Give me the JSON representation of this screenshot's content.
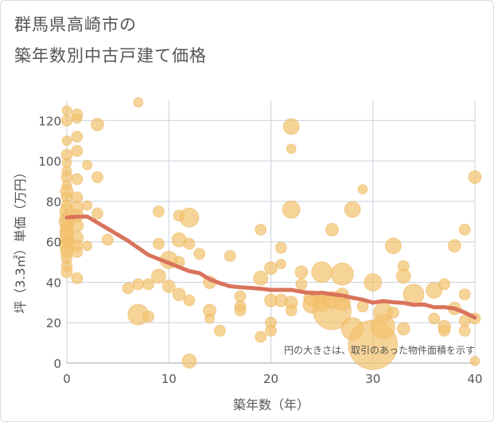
{
  "title_line1": "群馬県高崎市の",
  "title_line2": "築年数別中古戸建て価格",
  "chart_data": {
    "type": "scatter",
    "title": "群馬県高崎市の築年数別中古戸建て価格",
    "xlabel": "築年数（年）",
    "ylabel": "坪（3.3㎡）単価（万円）",
    "xlim": [
      0,
      40
    ],
    "ylim": [
      0,
      130
    ],
    "xticks": [
      0,
      10,
      20,
      30,
      40
    ],
    "yticks": [
      0,
      20,
      40,
      60,
      80,
      100,
      120
    ],
    "grid": true,
    "annotation": "円の大きさは、取引のあった物件面積を示す",
    "colors": {
      "bubble": "#f2c26f",
      "line": "#d9735b",
      "grid": "#c8d2dc"
    },
    "series": [
      {
        "type": "bubble",
        "points": [
          {
            "x": 0,
            "y": 125,
            "s": 6
          },
          {
            "x": 0,
            "y": 120,
            "s": 7
          },
          {
            "x": 0,
            "y": 110,
            "s": 6
          },
          {
            "x": 0,
            "y": 103,
            "s": 7
          },
          {
            "x": 0,
            "y": 99,
            "s": 6
          },
          {
            "x": 0,
            "y": 95,
            "s": 6
          },
          {
            "x": 0,
            "y": 92,
            "s": 7
          },
          {
            "x": 0,
            "y": 88,
            "s": 6
          },
          {
            "x": 0,
            "y": 85,
            "s": 8
          },
          {
            "x": 0,
            "y": 82,
            "s": 7
          },
          {
            "x": 0,
            "y": 78,
            "s": 7
          },
          {
            "x": 0,
            "y": 75,
            "s": 9
          },
          {
            "x": 0,
            "y": 72,
            "s": 8
          },
          {
            "x": 0,
            "y": 70,
            "s": 10
          },
          {
            "x": 0,
            "y": 67,
            "s": 8
          },
          {
            "x": 0,
            "y": 65,
            "s": 9
          },
          {
            "x": 0,
            "y": 62,
            "s": 9
          },
          {
            "x": 0,
            "y": 60,
            "s": 8
          },
          {
            "x": 0,
            "y": 58,
            "s": 9
          },
          {
            "x": 0,
            "y": 55,
            "s": 8
          },
          {
            "x": 0,
            "y": 52,
            "s": 7
          },
          {
            "x": 0,
            "y": 48,
            "s": 7
          },
          {
            "x": 0,
            "y": 45,
            "s": 7
          },
          {
            "x": 1,
            "y": 123,
            "s": 7
          },
          {
            "x": 1,
            "y": 121,
            "s": 6
          },
          {
            "x": 1,
            "y": 112,
            "s": 7
          },
          {
            "x": 1,
            "y": 105,
            "s": 7
          },
          {
            "x": 1,
            "y": 91,
            "s": 7
          },
          {
            "x": 1,
            "y": 82,
            "s": 7
          },
          {
            "x": 1,
            "y": 77,
            "s": 8
          },
          {
            "x": 1,
            "y": 73,
            "s": 8
          },
          {
            "x": 1,
            "y": 68,
            "s": 8
          },
          {
            "x": 1,
            "y": 62,
            "s": 8
          },
          {
            "x": 1,
            "y": 58,
            "s": 7
          },
          {
            "x": 1,
            "y": 55,
            "s": 7
          },
          {
            "x": 1,
            "y": 42,
            "s": 7
          },
          {
            "x": 2,
            "y": 98,
            "s": 6
          },
          {
            "x": 2,
            "y": 78,
            "s": 6
          },
          {
            "x": 2,
            "y": 58,
            "s": 6
          },
          {
            "x": 3,
            "y": 118,
            "s": 8
          },
          {
            "x": 3,
            "y": 92,
            "s": 7
          },
          {
            "x": 3,
            "y": 74,
            "s": 7
          },
          {
            "x": 4,
            "y": 61,
            "s": 7
          },
          {
            "x": 6,
            "y": 37,
            "s": 7
          },
          {
            "x": 7,
            "y": 129,
            "s": 6
          },
          {
            "x": 7,
            "y": 39,
            "s": 7
          },
          {
            "x": 7,
            "y": 24,
            "s": 13
          },
          {
            "x": 8,
            "y": 39,
            "s": 7
          },
          {
            "x": 8,
            "y": 23,
            "s": 7
          },
          {
            "x": 9,
            "y": 75,
            "s": 7
          },
          {
            "x": 9,
            "y": 59,
            "s": 7
          },
          {
            "x": 9,
            "y": 43,
            "s": 9
          },
          {
            "x": 10,
            "y": 51,
            "s": 11
          },
          {
            "x": 10,
            "y": 38,
            "s": 8
          },
          {
            "x": 11,
            "y": 73,
            "s": 7
          },
          {
            "x": 11,
            "y": 61,
            "s": 9
          },
          {
            "x": 11,
            "y": 50,
            "s": 7
          },
          {
            "x": 11,
            "y": 34,
            "s": 8
          },
          {
            "x": 12,
            "y": 72,
            "s": 12
          },
          {
            "x": 12,
            "y": 59,
            "s": 7
          },
          {
            "x": 12,
            "y": 31,
            "s": 7
          },
          {
            "x": 12,
            "y": 1,
            "s": 9
          },
          {
            "x": 13,
            "y": 54,
            "s": 7
          },
          {
            "x": 14,
            "y": 40,
            "s": 8
          },
          {
            "x": 14,
            "y": 26,
            "s": 8
          },
          {
            "x": 14,
            "y": 22,
            "s": 6
          },
          {
            "x": 15,
            "y": 16,
            "s": 7
          },
          {
            "x": 16,
            "y": 53,
            "s": 7
          },
          {
            "x": 17,
            "y": 33,
            "s": 7
          },
          {
            "x": 17,
            "y": 28,
            "s": 7
          },
          {
            "x": 17,
            "y": 26,
            "s": 7
          },
          {
            "x": 19,
            "y": 66,
            "s": 7
          },
          {
            "x": 19,
            "y": 42,
            "s": 9
          },
          {
            "x": 19,
            "y": 13,
            "s": 7
          },
          {
            "x": 20,
            "y": 47,
            "s": 8
          },
          {
            "x": 20,
            "y": 31,
            "s": 8
          },
          {
            "x": 20,
            "y": 20,
            "s": 7
          },
          {
            "x": 20,
            "y": 16,
            "s": 7
          },
          {
            "x": 21,
            "y": 57,
            "s": 7
          },
          {
            "x": 21,
            "y": 49,
            "s": 6
          },
          {
            "x": 21,
            "y": 31,
            "s": 8
          },
          {
            "x": 22,
            "y": 117,
            "s": 10
          },
          {
            "x": 22,
            "y": 106,
            "s": 6
          },
          {
            "x": 22,
            "y": 76,
            "s": 11
          },
          {
            "x": 22,
            "y": 30,
            "s": 8
          },
          {
            "x": 22,
            "y": 26,
            "s": 7
          },
          {
            "x": 23,
            "y": 45,
            "s": 8
          },
          {
            "x": 23,
            "y": 39,
            "s": 7
          },
          {
            "x": 24,
            "y": 32,
            "s": 10
          },
          {
            "x": 24,
            "y": 29,
            "s": 11
          },
          {
            "x": 25,
            "y": 45,
            "s": 13
          },
          {
            "x": 25,
            "y": 32,
            "s": 9
          },
          {
            "x": 25,
            "y": 29,
            "s": 9
          },
          {
            "x": 26,
            "y": 66,
            "s": 8
          },
          {
            "x": 26,
            "y": 26,
            "s": 24
          },
          {
            "x": 26,
            "y": 31,
            "s": 10
          },
          {
            "x": 27,
            "y": 44,
            "s": 14
          },
          {
            "x": 27,
            "y": 30,
            "s": 10
          },
          {
            "x": 27,
            "y": 34,
            "s": 8
          },
          {
            "x": 28,
            "y": 76,
            "s": 10
          },
          {
            "x": 28,
            "y": 17,
            "s": 14
          },
          {
            "x": 29,
            "y": 86,
            "s": 6
          },
          {
            "x": 29,
            "y": 28,
            "s": 7
          },
          {
            "x": 30,
            "y": 40,
            "s": 11
          },
          {
            "x": 30,
            "y": 9,
            "s": 31
          },
          {
            "x": 31,
            "y": 25,
            "s": 12
          },
          {
            "x": 31,
            "y": 18,
            "s": 15
          },
          {
            "x": 32,
            "y": 58,
            "s": 10
          },
          {
            "x": 32,
            "y": 25,
            "s": 7
          },
          {
            "x": 33,
            "y": 48,
            "s": 7
          },
          {
            "x": 33,
            "y": 43,
            "s": 9
          },
          {
            "x": 33,
            "y": 17,
            "s": 8
          },
          {
            "x": 34,
            "y": 34,
            "s": 13
          },
          {
            "x": 36,
            "y": 36,
            "s": 10
          },
          {
            "x": 36,
            "y": 22,
            "s": 7
          },
          {
            "x": 37,
            "y": 39,
            "s": 7
          },
          {
            "x": 37,
            "y": 18,
            "s": 8
          },
          {
            "x": 37,
            "y": 16,
            "s": 7
          },
          {
            "x": 38,
            "y": 58,
            "s": 8
          },
          {
            "x": 38,
            "y": 27,
            "s": 8
          },
          {
            "x": 39,
            "y": 66,
            "s": 7
          },
          {
            "x": 39,
            "y": 34,
            "s": 7
          },
          {
            "x": 39,
            "y": 21,
            "s": 7
          },
          {
            "x": 39,
            "y": 16,
            "s": 7
          },
          {
            "x": 40,
            "y": 92,
            "s": 8
          },
          {
            "x": 40,
            "y": 22,
            "s": 7
          },
          {
            "x": 40,
            "y": 1,
            "s": 6
          }
        ]
      },
      {
        "type": "line",
        "x": [
          0,
          1,
          2,
          3,
          4,
          5,
          6,
          7,
          8,
          9,
          10,
          11,
          12,
          13,
          14,
          15,
          16,
          17,
          18,
          19,
          20,
          21,
          22,
          23,
          24,
          25,
          26,
          27,
          28,
          29,
          30,
          31,
          32,
          33,
          34,
          35,
          36,
          37,
          38,
          39,
          40
        ],
        "y": [
          72,
          72.5,
          72.5,
          69.5,
          66.5,
          63.5,
          60.5,
          57,
          53.5,
          51.5,
          49.5,
          47.5,
          45.5,
          44.5,
          41.5,
          39.5,
          38,
          37.5,
          37.2,
          36.8,
          36.2,
          36.2,
          36.2,
          35.3,
          34.6,
          34.8,
          34,
          33.5,
          32.3,
          31.4,
          29.9,
          30.7,
          30.1,
          29.8,
          28.8,
          29,
          27.6,
          27.7,
          27,
          25,
          22.5
        ]
      }
    ]
  }
}
